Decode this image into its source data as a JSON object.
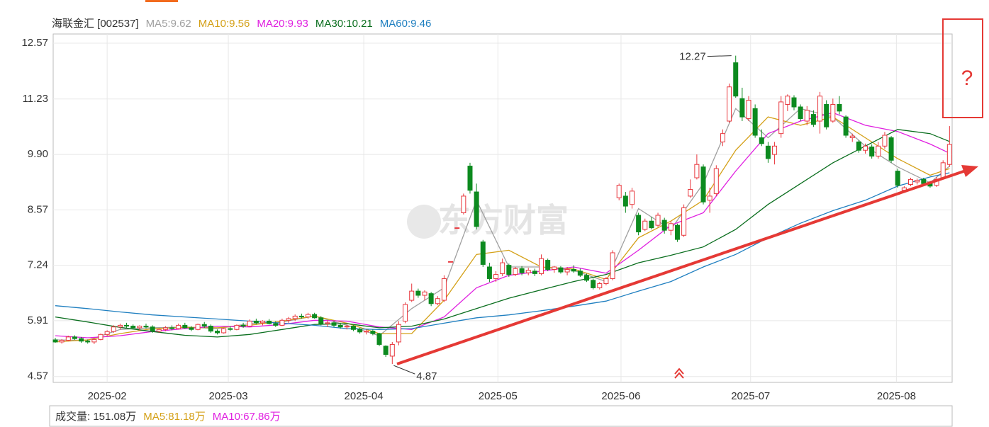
{
  "chart_data": {
    "type": "candlestick",
    "title": "海联金汇 [002537]",
    "ohlc": [
      [
        5.45,
        5.5,
        5.38,
        5.4
      ],
      [
        5.4,
        5.47,
        5.36,
        5.44
      ],
      [
        5.44,
        5.55,
        5.42,
        5.52
      ],
      [
        5.52,
        5.56,
        5.45,
        5.48
      ],
      [
        5.48,
        5.52,
        5.38,
        5.42
      ],
      [
        5.42,
        5.46,
        5.36,
        5.4
      ],
      [
        5.4,
        5.48,
        5.35,
        5.46
      ],
      [
        5.46,
        5.6,
        5.44,
        5.58
      ],
      [
        5.58,
        5.68,
        5.55,
        5.65
      ],
      [
        5.65,
        5.8,
        5.62,
        5.76
      ],
      [
        5.76,
        5.84,
        5.7,
        5.8
      ],
      [
        5.8,
        5.86,
        5.74,
        5.78
      ],
      [
        5.78,
        5.82,
        5.7,
        5.74
      ],
      [
        5.74,
        5.8,
        5.68,
        5.78
      ],
      [
        5.78,
        5.84,
        5.72,
        5.76
      ],
      [
        5.76,
        5.8,
        5.62,
        5.66
      ],
      [
        5.66,
        5.72,
        5.62,
        5.7
      ],
      [
        5.7,
        5.78,
        5.66,
        5.74
      ],
      [
        5.74,
        5.8,
        5.68,
        5.72
      ],
      [
        5.72,
        5.84,
        5.7,
        5.8
      ],
      [
        5.8,
        5.86,
        5.72,
        5.74
      ],
      [
        5.74,
        5.78,
        5.66,
        5.7
      ],
      [
        5.7,
        5.84,
        5.68,
        5.82
      ],
      [
        5.82,
        5.88,
        5.74,
        5.78
      ],
      [
        5.78,
        5.82,
        5.62,
        5.66
      ],
      [
        5.66,
        5.7,
        5.58,
        5.62
      ],
      [
        5.62,
        5.74,
        5.6,
        5.72
      ],
      [
        5.72,
        5.78,
        5.66,
        5.7
      ],
      [
        5.7,
        5.82,
        5.68,
        5.8
      ],
      [
        5.8,
        5.86,
        5.74,
        5.78
      ],
      [
        5.78,
        5.94,
        5.76,
        5.9
      ],
      [
        5.9,
        5.96,
        5.82,
        5.86
      ],
      [
        5.86,
        5.92,
        5.8,
        5.9
      ],
      [
        5.9,
        5.95,
        5.82,
        5.84
      ],
      [
        5.84,
        5.9,
        5.76,
        5.8
      ],
      [
        5.8,
        5.96,
        5.78,
        5.92
      ],
      [
        5.92,
        6.0,
        5.86,
        5.96
      ],
      [
        5.96,
        6.06,
        5.9,
        6.02
      ],
      [
        6.02,
        6.08,
        5.96,
        6.0
      ],
      [
        6.0,
        6.1,
        5.96,
        6.06
      ],
      [
        6.06,
        6.1,
        5.96,
        5.98
      ],
      [
        5.98,
        6.02,
        5.8,
        5.84
      ],
      [
        5.84,
        5.92,
        5.76,
        5.86
      ],
      [
        5.86,
        5.9,
        5.76,
        5.8
      ],
      [
        5.8,
        5.86,
        5.72,
        5.76
      ],
      [
        5.76,
        5.82,
        5.7,
        5.78
      ],
      [
        5.78,
        5.8,
        5.66,
        5.7
      ],
      [
        5.7,
        5.74,
        5.6,
        5.64
      ],
      [
        5.64,
        5.7,
        5.58,
        5.66
      ],
      [
        5.66,
        5.7,
        5.56,
        5.6
      ],
      [
        5.6,
        5.62,
        5.3,
        5.34
      ],
      [
        5.3,
        5.32,
        5.04,
        5.1
      ],
      [
        5.06,
        5.4,
        4.87,
        5.34
      ],
      [
        5.4,
        5.9,
        5.32,
        5.82
      ],
      [
        5.9,
        6.35,
        5.85,
        6.3
      ],
      [
        6.4,
        6.8,
        6.36,
        6.62
      ],
      [
        6.62,
        6.68,
        6.46,
        6.52
      ],
      [
        6.52,
        6.64,
        6.4,
        6.6
      ],
      [
        6.56,
        6.6,
        6.26,
        6.32
      ],
      [
        6.32,
        6.5,
        6.28,
        6.44
      ],
      [
        6.4,
        7.0,
        6.36,
        6.92
      ],
      [
        7.32,
        7.33,
        7.32,
        7.33
      ],
      [
        8.13,
        8.14,
        8.13,
        8.14
      ],
      [
        8.5,
        8.96,
        8.46,
        8.9
      ],
      [
        9.62,
        9.7,
        8.96,
        9.04
      ],
      [
        9.0,
        9.2,
        8.1,
        8.17
      ],
      [
        7.8,
        7.85,
        7.2,
        7.26
      ],
      [
        7.2,
        7.3,
        6.84,
        6.92
      ],
      [
        6.92,
        7.1,
        6.84,
        7.02
      ],
      [
        7.04,
        7.4,
        6.98,
        7.3
      ],
      [
        7.24,
        7.28,
        6.96,
        7.02
      ],
      [
        7.02,
        7.2,
        6.98,
        7.16
      ],
      [
        7.16,
        7.22,
        7.0,
        7.06
      ],
      [
        7.06,
        7.18,
        7.0,
        7.12
      ],
      [
        7.1,
        7.16,
        6.98,
        7.04
      ],
      [
        7.04,
        7.5,
        7.0,
        7.4
      ],
      [
        7.36,
        7.4,
        7.1,
        7.14
      ],
      [
        7.14,
        7.22,
        7.06,
        7.2
      ],
      [
        7.18,
        7.22,
        7.04,
        7.08
      ],
      [
        7.08,
        7.2,
        7.0,
        7.14
      ],
      [
        7.14,
        7.24,
        7.06,
        7.1
      ],
      [
        7.1,
        7.16,
        6.96,
        7.0
      ],
      [
        7.0,
        7.04,
        6.84,
        6.88
      ],
      [
        6.88,
        6.92,
        6.66,
        6.7
      ],
      [
        6.7,
        6.84,
        6.66,
        6.8
      ],
      [
        6.8,
        6.96,
        6.76,
        6.92
      ],
      [
        6.92,
        7.6,
        6.88,
        7.54
      ],
      [
        8.86,
        9.2,
        8.8,
        9.16
      ],
      [
        8.9,
        9.0,
        8.5,
        8.66
      ],
      [
        8.7,
        9.1,
        8.6,
        9.02
      ],
      [
        8.44,
        8.5,
        7.96,
        8.04
      ],
      [
        8.1,
        8.36,
        8.06,
        8.3
      ],
      [
        8.3,
        8.4,
        8.1,
        8.14
      ],
      [
        8.2,
        8.5,
        8.16,
        8.44
      ],
      [
        8.32,
        8.38,
        8.0,
        8.08
      ],
      [
        8.08,
        8.3,
        7.96,
        8.24
      ],
      [
        8.2,
        8.24,
        7.8,
        7.86
      ],
      [
        7.96,
        8.7,
        7.92,
        8.62
      ],
      [
        8.9,
        9.3,
        8.86,
        9.06
      ],
      [
        9.34,
        9.9,
        9.3,
        9.66
      ],
      [
        9.6,
        9.66,
        8.7,
        8.76
      ],
      [
        8.8,
        9.1,
        8.5,
        8.9
      ],
      [
        8.96,
        9.64,
        8.9,
        9.56
      ],
      [
        10.2,
        10.5,
        10.1,
        10.4
      ],
      [
        10.7,
        11.6,
        10.66,
        11.52
      ],
      [
        12.1,
        12.27,
        11.26,
        11.3
      ],
      [
        11.24,
        11.5,
        10.7,
        10.8
      ],
      [
        10.76,
        11.3,
        10.7,
        11.2
      ],
      [
        11.0,
        11.1,
        10.3,
        10.36
      ],
      [
        10.3,
        10.5,
        10.1,
        10.16
      ],
      [
        10.1,
        10.2,
        9.7,
        9.8
      ],
      [
        9.9,
        10.2,
        9.66,
        10.1
      ],
      [
        10.4,
        11.3,
        10.3,
        11.16
      ],
      [
        11.1,
        11.34,
        10.94,
        11.3
      ],
      [
        11.26,
        11.32,
        10.96,
        11.04
      ],
      [
        11.04,
        11.1,
        10.7,
        10.76
      ],
      [
        10.7,
        11.06,
        10.6,
        10.96
      ],
      [
        10.86,
        10.96,
        10.56,
        10.62
      ],
      [
        10.7,
        11.4,
        10.4,
        11.3
      ],
      [
        11.1,
        11.2,
        10.5,
        10.56
      ],
      [
        10.7,
        11.24,
        10.66,
        11.1
      ],
      [
        11.1,
        11.3,
        10.86,
        10.94
      ],
      [
        10.8,
        10.84,
        10.3,
        10.36
      ],
      [
        10.3,
        10.4,
        10.2,
        10.34
      ],
      [
        10.2,
        10.24,
        9.94,
        10.0
      ],
      [
        10.0,
        10.16,
        9.92,
        10.1
      ],
      [
        10.08,
        10.14,
        9.8,
        9.86
      ],
      [
        9.86,
        10.2,
        9.8,
        10.1
      ],
      [
        10.1,
        10.44,
        10.04,
        10.36
      ],
      [
        10.3,
        10.34,
        9.7,
        9.76
      ],
      [
        9.5,
        9.56,
        9.1,
        9.16
      ],
      [
        9.04,
        9.14,
        8.98,
        9.1
      ],
      [
        9.18,
        9.34,
        9.14,
        9.3
      ],
      [
        9.24,
        9.32,
        9.18,
        9.28
      ],
      [
        9.3,
        9.34,
        9.16,
        9.2
      ],
      [
        9.2,
        9.26,
        9.1,
        9.14
      ],
      [
        9.16,
        9.36,
        9.12,
        9.3
      ],
      [
        9.34,
        9.76,
        9.3,
        9.7
      ],
      [
        9.66,
        10.58,
        9.6,
        10.14
      ]
    ],
    "up_color": "#e8373d",
    "down_color": "#0c8a1f",
    "xlim": [
      -0.33,
      138.4
    ],
    "xticks": [
      {
        "value": 8,
        "label": "2025-02"
      },
      {
        "value": 26.7,
        "label": "2025-03"
      },
      {
        "value": 47.6,
        "label": "2025-04"
      },
      {
        "value": 68.3,
        "label": "2025-05"
      },
      {
        "value": 87.3,
        "label": "2025-06"
      },
      {
        "value": 107.3,
        "label": "2025-07"
      },
      {
        "value": 129.8,
        "label": "2025-08"
      }
    ],
    "ylim": [
      4.43,
      12.79
    ],
    "yticks": [
      4.57,
      5.91,
      7.24,
      8.57,
      {
        "value": 9.9,
        "label": "9.90"
      },
      11.23,
      12.57
    ],
    "grid": true,
    "ma_x": [
      0,
      5,
      10,
      15,
      20,
      25,
      30,
      35,
      40,
      45,
      50,
      55,
      60,
      65,
      70,
      75,
      80,
      85,
      90,
      95,
      100,
      105,
      110,
      115,
      120,
      125,
      130,
      135,
      138
    ],
    "series": [
      {
        "name": "MA5:9.62",
        "color": "#a0a0a0",
        "values": [
          5.45,
          5.44,
          5.7,
          5.74,
          5.76,
          5.72,
          5.84,
          5.88,
          6.02,
          5.8,
          5.55,
          6.2,
          6.7,
          8.8,
          7.2,
          7.2,
          7.12,
          6.85,
          8.6,
          8.1,
          9.2,
          11.0,
          10.3,
          11.0,
          10.8,
          10.1,
          9.6,
          9.22,
          9.62
        ]
      },
      {
        "name": "MA10:9.56",
        "color": "#d4a017",
        "values": [
          5.4,
          5.45,
          5.6,
          5.72,
          5.75,
          5.74,
          5.8,
          5.9,
          6.02,
          5.85,
          5.6,
          5.6,
          6.4,
          7.5,
          7.6,
          7.2,
          7.15,
          6.9,
          7.9,
          8.3,
          8.8,
          10.0,
          10.8,
          10.6,
          10.8,
          10.3,
          9.8,
          9.4,
          9.56
        ]
      },
      {
        "name": "MA20:9.93",
        "color": "#e020e0",
        "values": [
          5.55,
          5.5,
          5.55,
          5.65,
          5.72,
          5.78,
          5.76,
          5.82,
          5.92,
          5.9,
          5.76,
          5.7,
          6.0,
          6.7,
          7.0,
          7.1,
          7.2,
          7.05,
          7.6,
          8.2,
          8.5,
          9.5,
          10.4,
          10.7,
          10.9,
          10.6,
          10.45,
          10.15,
          9.93
        ]
      },
      {
        "name": "MA30:10.21",
        "color": "#0a6e1e",
        "values": [
          6.0,
          5.88,
          5.75,
          5.65,
          5.56,
          5.52,
          5.58,
          5.7,
          5.82,
          5.84,
          5.74,
          5.78,
          5.95,
          6.2,
          6.45,
          6.65,
          6.85,
          7.02,
          7.3,
          7.48,
          7.68,
          8.1,
          8.7,
          9.2,
          9.7,
          10.1,
          10.5,
          10.4,
          10.21
        ]
      },
      {
        "name": "MA60:9.46",
        "color": "#1f7fc0",
        "values": [
          6.27,
          6.2,
          6.12,
          6.05,
          6.0,
          5.95,
          5.9,
          5.85,
          5.8,
          5.72,
          5.7,
          5.72,
          5.85,
          5.98,
          6.05,
          6.15,
          6.26,
          6.38,
          6.62,
          6.85,
          7.2,
          7.5,
          7.9,
          8.25,
          8.55,
          8.8,
          9.14,
          9.36,
          9.46
        ]
      }
    ],
    "annotations": [
      {
        "value": 12.27,
        "index": 105
      },
      {
        "value": 4.87,
        "index": 52
      }
    ],
    "watermark": "东方财富",
    "side_note": "?"
  },
  "volume_panel": {
    "labels": [
      {
        "text": "成交量: 151.08万",
        "color": "#333"
      },
      {
        "text": "MA5:81.18万",
        "color": "#d4a017"
      },
      {
        "text": "MA10:67.86万",
        "color": "#e020e0"
      }
    ]
  }
}
